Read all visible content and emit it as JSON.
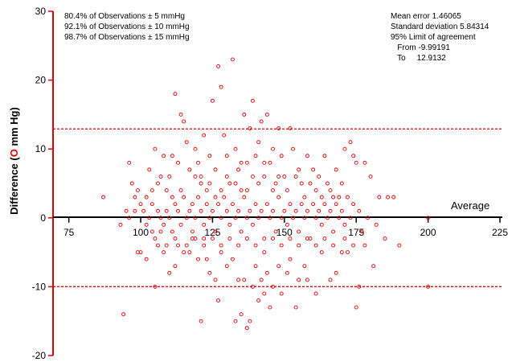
{
  "chart_data": {
    "type": "scatter",
    "xlabel": "Average",
    "ylabel_prefix": "Difference (",
    "ylabel_marker": "O",
    "ylabel_suffix": " mm Hg)",
    "xlim": [
      60,
      225
    ],
    "ylim": [
      -20,
      30
    ],
    "xticks": [
      75,
      100,
      125,
      150,
      175,
      200,
      225
    ],
    "yticks": [
      30,
      20,
      10,
      0,
      -10,
      -20
    ],
    "mean_line": 1.46065,
    "limit_lines": [
      12.9132,
      -9.99191
    ],
    "observations_text": [
      "80.4% of Observations ± 5 mmHg",
      "92.1% of Observations ± 10 mmHg",
      "98.7% of Observations ± 15 mmHg"
    ],
    "stats_text": [
      "Mean error 1.46065",
      "Standard deviation 5.84314",
      "95% Limit of agreement",
      "   From -9.99191",
      "   To     12.9132"
    ],
    "point_color": "#e00000",
    "line_color": "#e00000",
    "points": [
      [
        87,
        3
      ],
      [
        93,
        -1
      ],
      [
        94,
        -14
      ],
      [
        95,
        1
      ],
      [
        96,
        0
      ],
      [
        98,
        1
      ],
      [
        99,
        -5
      ],
      [
        100,
        -5
      ],
      [
        102,
        -6
      ],
      [
        104,
        -2
      ],
      [
        105,
        -10
      ],
      [
        106,
        -4
      ],
      [
        107,
        -2
      ],
      [
        108,
        -5
      ],
      [
        110,
        -8
      ],
      [
        112,
        -7
      ],
      [
        113,
        -4
      ],
      [
        115,
        -5
      ],
      [
        117,
        -5
      ],
      [
        118,
        -3
      ],
      [
        120,
        -6
      ],
      [
        121,
        -15
      ],
      [
        122,
        -3
      ],
      [
        123,
        -6
      ],
      [
        124,
        -8
      ],
      [
        126,
        -9
      ],
      [
        127,
        -12
      ],
      [
        128,
        -5
      ],
      [
        130,
        -7
      ],
      [
        132,
        -6
      ],
      [
        133,
        -15
      ],
      [
        134,
        -9
      ],
      [
        135,
        -14
      ],
      [
        136,
        -9
      ],
      [
        137,
        -16
      ],
      [
        138,
        -15
      ],
      [
        139,
        -10
      ],
      [
        140,
        -7
      ],
      [
        141,
        -12
      ],
      [
        142,
        -9
      ],
      [
        143,
        -11
      ],
      [
        144,
        -8
      ],
      [
        145,
        -13
      ],
      [
        146,
        -10
      ],
      [
        148,
        -7
      ],
      [
        149,
        -11
      ],
      [
        151,
        -8
      ],
      [
        152,
        -6
      ],
      [
        154,
        -13
      ],
      [
        155,
        -9
      ],
      [
        157,
        -7
      ],
      [
        158,
        -9
      ],
      [
        161,
        -11
      ],
      [
        163,
        -5
      ],
      [
        166,
        -9
      ],
      [
        168,
        -8
      ],
      [
        170,
        -5
      ],
      [
        172,
        -5
      ],
      [
        175,
        -13
      ],
      [
        176,
        -10
      ],
      [
        178,
        -4
      ],
      [
        181,
        -7
      ],
      [
        185,
        -3
      ],
      [
        190,
        -4
      ],
      [
        200,
        -10
      ],
      [
        100,
        2
      ],
      [
        102,
        3
      ],
      [
        103,
        7
      ],
      [
        105,
        10
      ],
      [
        106,
        5
      ],
      [
        108,
        9
      ],
      [
        109,
        4
      ],
      [
        110,
        6
      ],
      [
        111,
        3
      ],
      [
        112,
        18
      ],
      [
        113,
        8
      ],
      [
        114,
        15
      ],
      [
        115,
        14
      ],
      [
        116,
        11
      ],
      [
        118,
        2
      ],
      [
        119,
        6
      ],
      [
        120,
        8
      ],
      [
        121,
        5
      ],
      [
        122,
        12
      ],
      [
        123,
        4
      ],
      [
        124,
        9
      ],
      [
        125,
        17
      ],
      [
        126,
        3
      ],
      [
        127,
        22
      ],
      [
        128,
        19
      ],
      [
        129,
        12
      ],
      [
        130,
        6
      ],
      [
        131,
        5
      ],
      [
        132,
        23
      ],
      [
        133,
        10
      ],
      [
        134,
        7
      ],
      [
        135,
        4
      ],
      [
        136,
        15
      ],
      [
        137,
        8
      ],
      [
        138,
        13
      ],
      [
        139,
        17
      ],
      [
        140,
        9
      ],
      [
        141,
        11
      ],
      [
        142,
        14
      ],
      [
        143,
        6
      ],
      [
        144,
        15
      ],
      [
        145,
        8
      ],
      [
        146,
        10
      ],
      [
        147,
        5
      ],
      [
        148,
        13
      ],
      [
        149,
        9
      ],
      [
        150,
        6
      ],
      [
        152,
        13
      ],
      [
        153,
        10
      ],
      [
        155,
        7
      ],
      [
        156,
        5
      ],
      [
        158,
        9
      ],
      [
        160,
        7
      ],
      [
        161,
        4
      ],
      [
        162,
        6
      ],
      [
        164,
        9
      ],
      [
        165,
        5
      ],
      [
        167,
        3
      ],
      [
        168,
        7
      ],
      [
        170,
        5
      ],
      [
        171,
        10
      ],
      [
        173,
        11
      ],
      [
        174,
        9
      ],
      [
        175,
        8
      ],
      [
        178,
        8
      ],
      [
        180,
        6
      ],
      [
        183,
        3
      ],
      [
        186,
        3
      ],
      [
        188,
        3
      ],
      [
        96,
        8
      ],
      [
        97,
        5
      ],
      [
        98,
        3
      ],
      [
        99,
        4
      ],
      [
        101,
        1
      ],
      [
        102,
        -1
      ],
      [
        103,
        0
      ],
      [
        104,
        2
      ],
      [
        106,
        1
      ],
      [
        107,
        0
      ],
      [
        108,
        -1
      ],
      [
        109,
        1
      ],
      [
        110,
        0
      ],
      [
        111,
        -2
      ],
      [
        112,
        2
      ],
      [
        113,
        1
      ],
      [
        114,
        -1
      ],
      [
        115,
        3
      ],
      [
        116,
        0
      ],
      [
        117,
        1
      ],
      [
        118,
        -2
      ],
      [
        119,
        0
      ],
      [
        120,
        3
      ],
      [
        121,
        1
      ],
      [
        122,
        -1
      ],
      [
        123,
        2
      ],
      [
        124,
        0
      ],
      [
        125,
        1
      ],
      [
        126,
        -2
      ],
      [
        127,
        2
      ],
      [
        128,
        0
      ],
      [
        129,
        3
      ],
      [
        130,
        1
      ],
      [
        131,
        -1
      ],
      [
        132,
        2
      ],
      [
        133,
        0
      ],
      [
        134,
        1
      ],
      [
        135,
        -2
      ],
      [
        136,
        3
      ],
      [
        137,
        0
      ],
      [
        138,
        1
      ],
      [
        139,
        -1
      ],
      [
        140,
        2
      ],
      [
        141,
        0
      ],
      [
        142,
        1
      ],
      [
        143,
        -3
      ],
      [
        144,
        2
      ],
      [
        145,
        0
      ],
      [
        146,
        1
      ],
      [
        147,
        -2
      ],
      [
        148,
        3
      ],
      [
        149,
        0
      ],
      [
        150,
        1
      ],
      [
        151,
        -1
      ],
      [
        152,
        2
      ],
      [
        153,
        0
      ],
      [
        154,
        1
      ],
      [
        155,
        -2
      ],
      [
        156,
        2
      ],
      [
        157,
        0
      ],
      [
        158,
        1
      ],
      [
        159,
        -3
      ],
      [
        160,
        2
      ],
      [
        161,
        0
      ],
      [
        162,
        1
      ],
      [
        163,
        -1
      ],
      [
        164,
        2
      ],
      [
        165,
        0
      ],
      [
        166,
        1
      ],
      [
        167,
        -2
      ],
      [
        168,
        2
      ],
      [
        169,
        0
      ],
      [
        170,
        1
      ],
      [
        171,
        -1
      ],
      [
        172,
        3
      ],
      [
        173,
        0
      ],
      [
        174,
        2
      ],
      [
        176,
        1
      ],
      [
        177,
        -2
      ],
      [
        179,
        0
      ],
      [
        182,
        -1
      ],
      [
        200,
        0
      ],
      [
        104,
        4
      ],
      [
        107,
        6
      ],
      [
        111,
        9
      ],
      [
        114,
        4
      ],
      [
        117,
        7
      ],
      [
        119,
        10
      ],
      [
        121,
        6
      ],
      [
        124,
        5
      ],
      [
        126,
        7
      ],
      [
        128,
        4
      ],
      [
        130,
        9
      ],
      [
        133,
        5
      ],
      [
        135,
        8
      ],
      [
        137,
        4
      ],
      [
        139,
        6
      ],
      [
        141,
        5
      ],
      [
        143,
        8
      ],
      [
        146,
        4
      ],
      [
        148,
        6
      ],
      [
        151,
        4
      ],
      [
        154,
        6
      ],
      [
        157,
        3
      ],
      [
        159,
        5
      ],
      [
        163,
        3
      ],
      [
        166,
        4
      ],
      [
        169,
        3
      ],
      [
        105,
        -3
      ],
      [
        109,
        -4
      ],
      [
        112,
        -3
      ],
      [
        116,
        -4
      ],
      [
        119,
        -3
      ],
      [
        122,
        -4
      ],
      [
        125,
        -3
      ],
      [
        128,
        -4
      ],
      [
        131,
        -3
      ],
      [
        134,
        -4
      ],
      [
        137,
        -3
      ],
      [
        140,
        -4
      ],
      [
        143,
        -5
      ],
      [
        146,
        -3
      ],
      [
        149,
        -4
      ],
      [
        152,
        -3
      ],
      [
        155,
        -4
      ],
      [
        158,
        -3
      ],
      [
        161,
        -4
      ],
      [
        164,
        -3
      ],
      [
        167,
        -4
      ],
      [
        171,
        -3
      ],
      [
        174,
        -4
      ]
    ]
  }
}
